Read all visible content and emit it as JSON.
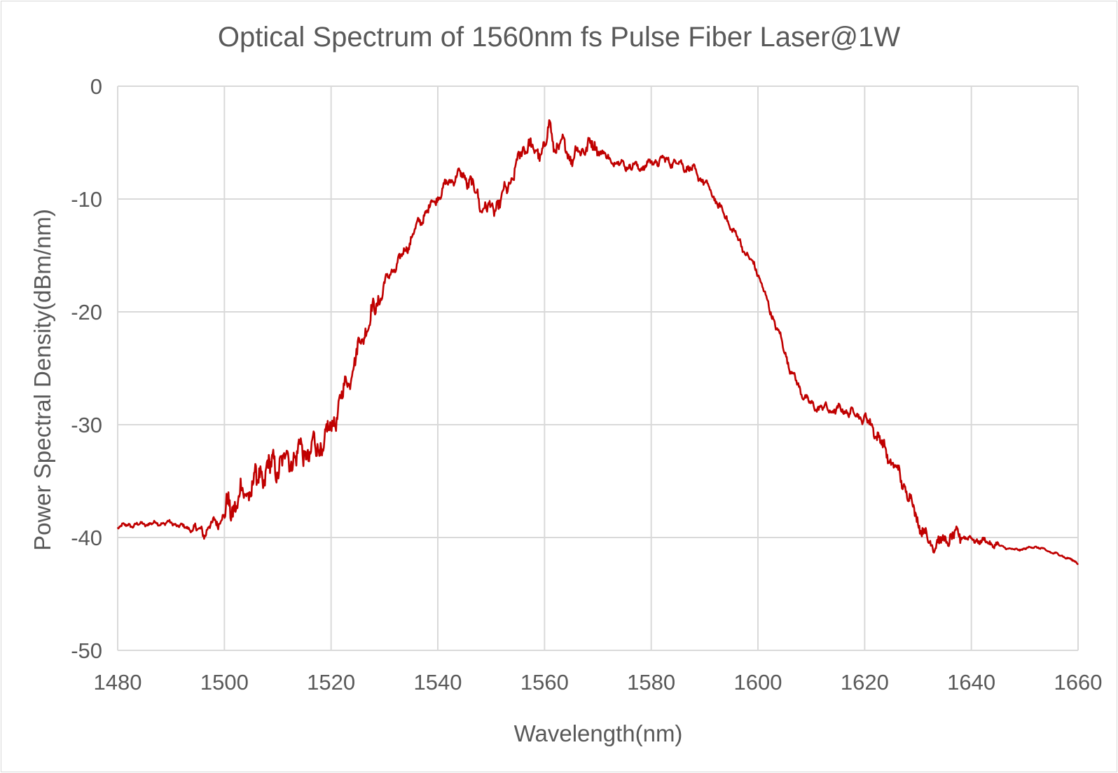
{
  "chart_data": {
    "type": "line",
    "title": "Optical Spectrum of 1560nm fs Pulse Fiber Laser@1W",
    "xlabel": "Wavelength(nm)",
    "ylabel": "Power Spectral Density(dBm/nm)",
    "xlim": [
      1480,
      1660
    ],
    "ylim": [
      -50,
      0
    ],
    "x_ticks": [
      1480,
      1500,
      1520,
      1540,
      1560,
      1580,
      1600,
      1620,
      1640,
      1660
    ],
    "y_ticks": [
      0,
      -10,
      -20,
      -30,
      -40,
      -50
    ],
    "x_tick_labels": [
      "1480",
      "1500",
      "1520",
      "1540",
      "1560",
      "1580",
      "1600",
      "1620",
      "1640",
      "1660"
    ],
    "y_tick_labels": [
      "0",
      "-10",
      "-20",
      "-30",
      "-40",
      "-50"
    ],
    "grid": true,
    "legend": "none",
    "colors": {
      "line": "#c00000",
      "grid": "#d9d9d9",
      "text": "#595959"
    },
    "series": [
      {
        "x": [
          1480,
          1485,
          1490,
          1494,
          1496,
          1498,
          1500,
          1502,
          1504,
          1506,
          1508,
          1510,
          1512,
          1514,
          1516,
          1518,
          1520,
          1522,
          1524,
          1526,
          1528,
          1530,
          1532,
          1534,
          1536,
          1538,
          1540,
          1542,
          1544,
          1546,
          1548,
          1550,
          1552,
          1554,
          1556,
          1557,
          1558,
          1560,
          1561,
          1562,
          1564,
          1565,
          1566,
          1568,
          1570,
          1572,
          1575,
          1578,
          1580,
          1582,
          1585,
          1588,
          1590,
          1592,
          1595,
          1598,
          1600,
          1602,
          1604,
          1606,
          1608,
          1610,
          1612,
          1614,
          1616,
          1618,
          1620,
          1622,
          1624,
          1626,
          1628,
          1630,
          1632,
          1634,
          1636,
          1638,
          1640,
          1642,
          1645,
          1648,
          1650,
          1652,
          1655,
          1658,
          1660
        ],
        "y": [
          -39,
          -38.8,
          -38.7,
          -39.3,
          -39.5,
          -38.8,
          -38,
          -37,
          -36,
          -35,
          -34,
          -33.5,
          -33,
          -32.5,
          -32.3,
          -32,
          -30.5,
          -27.5,
          -25,
          -22,
          -20,
          -17.5,
          -16,
          -14.5,
          -12.5,
          -11,
          -9.8,
          -8.5,
          -7.8,
          -8.3,
          -10.5,
          -11,
          -10,
          -8,
          -5.5,
          -5,
          -6,
          -5.5,
          -3.5,
          -5.5,
          -5.2,
          -6.5,
          -6,
          -5.2,
          -5.5,
          -6.5,
          -7,
          -7.2,
          -6.8,
          -6.5,
          -6.8,
          -7.5,
          -8.5,
          -10,
          -12.5,
          -15,
          -16.5,
          -19.5,
          -22,
          -25,
          -27,
          -28.3,
          -28.5,
          -28.7,
          -28.7,
          -29,
          -29.5,
          -30.5,
          -32.5,
          -34,
          -36,
          -38.5,
          -40.5,
          -40.5,
          -40,
          -39.8,
          -40.2,
          -40.3,
          -40.7,
          -41.1,
          -41,
          -40.8,
          -41.3,
          -41.8,
          -42.3
        ]
      }
    ]
  }
}
